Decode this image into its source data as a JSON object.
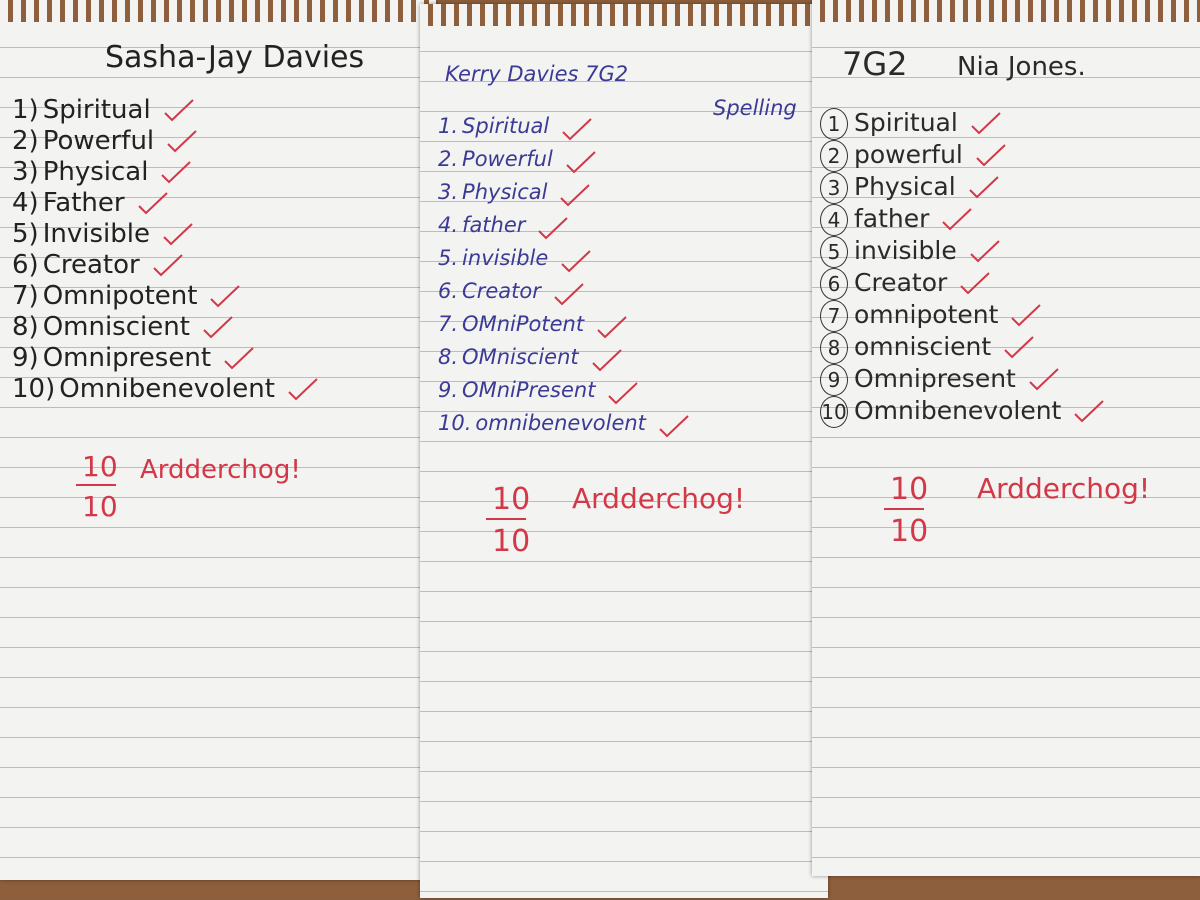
{
  "sheets": [
    {
      "header": {
        "name": "Sasha-Jay Davies"
      },
      "items": [
        {
          "number": "1)",
          "word": "Spiritual"
        },
        {
          "number": "2)",
          "word": "Powerful"
        },
        {
          "number": "3)",
          "word": "Physical"
        },
        {
          "number": "4)",
          "word": "Father"
        },
        {
          "number": "5)",
          "word": "Invisible"
        },
        {
          "number": "6)",
          "word": "Creator"
        },
        {
          "number": "7)",
          "word": "Omnipotent"
        },
        {
          "number": "8)",
          "word": "Omniscient"
        },
        {
          "number": "9)",
          "word": "Omnipresent"
        },
        {
          "number": "10)",
          "word": "Omnibenevolent"
        }
      ],
      "score": {
        "numerator": "10",
        "denominator": "10"
      },
      "comment": "Ardderchog!"
    },
    {
      "header": {
        "name": "Kerry Davies 7G2",
        "subject": "Spelling"
      },
      "items": [
        {
          "number": "1.",
          "word": "Spiritual"
        },
        {
          "number": "2.",
          "word": "Powerful"
        },
        {
          "number": "3.",
          "word": "Physical"
        },
        {
          "number": "4.",
          "word": "father"
        },
        {
          "number": "5.",
          "word": "invisible"
        },
        {
          "number": "6.",
          "word": "Creator"
        },
        {
          "number": "7.",
          "word": "OMniPotent"
        },
        {
          "number": "8.",
          "word": "OMniscient"
        },
        {
          "number": "9.",
          "word": "OMniPresent"
        },
        {
          "number": "10.",
          "word": "omnibenevolent"
        }
      ],
      "score": {
        "numerator": "10",
        "denominator": "10"
      },
      "comment": "Ardderchog!"
    },
    {
      "header": {
        "class": "7G2",
        "name": "Nia Jones."
      },
      "items": [
        {
          "number": "1",
          "word": "Spiritual"
        },
        {
          "number": "2",
          "word": "powerful"
        },
        {
          "number": "3",
          "word": "Physical"
        },
        {
          "number": "4",
          "word": "father"
        },
        {
          "number": "5",
          "word": "invisible"
        },
        {
          "number": "6",
          "word": "Creator"
        },
        {
          "number": "7",
          "word": "omnipotent"
        },
        {
          "number": "8",
          "word": "omniscient"
        },
        {
          "number": "9",
          "word": "Omnipresent"
        },
        {
          "number": "10",
          "word": "Omnibenevolent"
        }
      ],
      "score": {
        "numerator": "10",
        "denominator": "10"
      },
      "comment": "Ardderchog!"
    }
  ]
}
